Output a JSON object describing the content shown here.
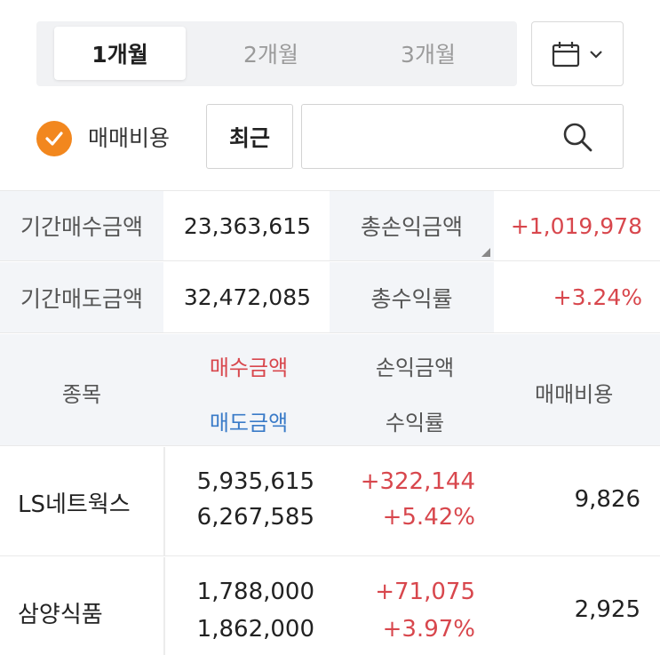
{
  "period_tabs": [
    "1개월",
    "2개월",
    "3개월"
  ],
  "active_tab": "1개월",
  "filters": {
    "fee_label": "매매비용",
    "fee_checked": true,
    "recent_label": "최근",
    "search_value": "",
    "search_placeholder": ""
  },
  "summary": {
    "buy_amount_label": "기간매수금액",
    "buy_amount": "23,363,615",
    "total_pl_label": "총손익금액",
    "total_pl": "+1,019,978",
    "sell_amount_label": "기간매도금액",
    "sell_amount": "32,472,085",
    "total_return_label": "총수익률",
    "total_return": "+3.24%"
  },
  "table_header": {
    "stock": "종목",
    "buy_amount": "매수금액",
    "sell_amount": "매도금액",
    "pl_amount": "손익금액",
    "return_rate": "수익률",
    "fee": "매매비용"
  },
  "rows": [
    {
      "name": "LS네트웍스",
      "buy": "5,935,615",
      "sell": "6,267,585",
      "pl": "+322,144",
      "rate": "+5.42%",
      "fee": "9,826"
    },
    {
      "name": "삼양식품",
      "buy": "1,788,000",
      "sell": "1,862,000",
      "pl": "+71,075",
      "rate": "+3.97%",
      "fee": "2,925"
    }
  ],
  "colors": {
    "accent": "#f2871e",
    "positive": "#d8474d",
    "sell_blue": "#3a7bc8",
    "label_bg": "#f3f5f8"
  },
  "icons": {
    "calendar": "calendar-icon",
    "dropdown": "chevron-down-icon",
    "check": "check-icon",
    "search": "search-icon"
  }
}
